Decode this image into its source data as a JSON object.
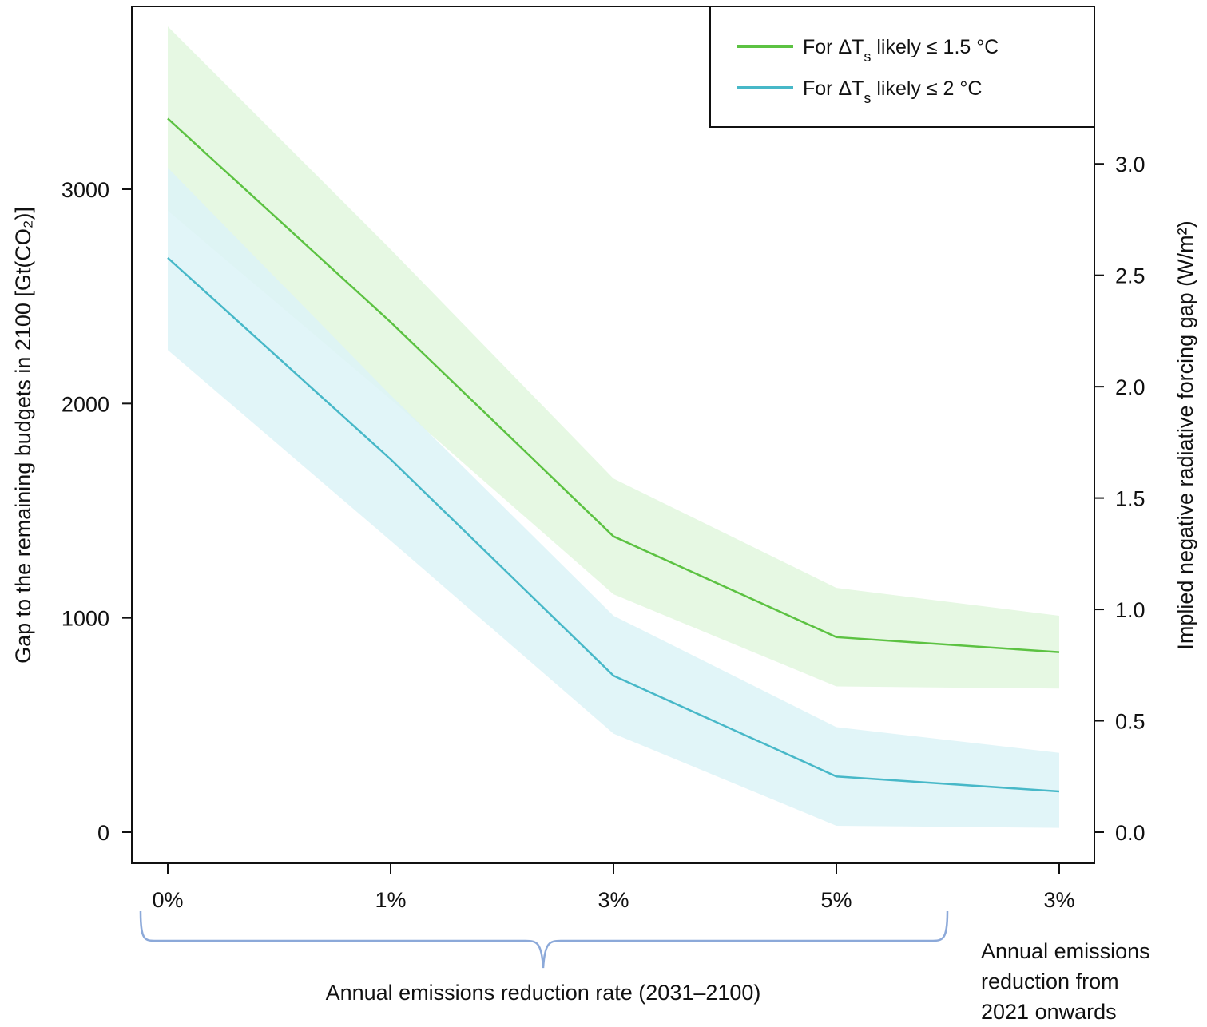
{
  "chart_data": {
    "type": "line",
    "categories": [
      "0%",
      "1%",
      "3%",
      "5%",
      "3%"
    ],
    "series": [
      {
        "name_prefix": "For ΔT",
        "name_subscript": "s",
        "name_suffix": " likely ≤ 1.5 °C",
        "color": "#5cc242",
        "band_color": "#e6f8e3",
        "values": [
          3330,
          2380,
          1380,
          910,
          840
        ],
        "upper": [
          3760,
          2720,
          1650,
          1140,
          1010
        ],
        "lower": [
          2900,
          2020,
          1110,
          680,
          670
        ]
      },
      {
        "name_prefix": "For ΔT",
        "name_subscript": "s",
        "name_suffix": " likely ≤ 2 °C",
        "color": "#47b8c8",
        "band_color": "#dcf3f7",
        "values": [
          2680,
          1740,
          730,
          260,
          190
        ],
        "upper": [
          3100,
          2040,
          1010,
          490,
          370
        ],
        "lower": [
          2250,
          1360,
          460,
          30,
          20
        ]
      }
    ],
    "ylabel": "Gap to the remaining budgets in 2100 [Gt(CO₂)]",
    "y2label": "Implied negative radiative forcing gap (W/m²)",
    "xlabel": "Annual emissions reduction rate (2031–2100)",
    "x_extra_label": [
      "Annual emissions",
      "reduction from",
      "2021 onwards"
    ],
    "ylim": [
      -150,
      3850
    ],
    "yticks": [
      0,
      1000,
      2000,
      3000
    ],
    "y2ticks": [
      "0.0",
      "0.5",
      "1.0",
      "1.5",
      "2.0",
      "2.5",
      "3.0"
    ],
    "y2_per_unit_gt": 0.000962,
    "legend_position": "top-right",
    "grid": false
  }
}
